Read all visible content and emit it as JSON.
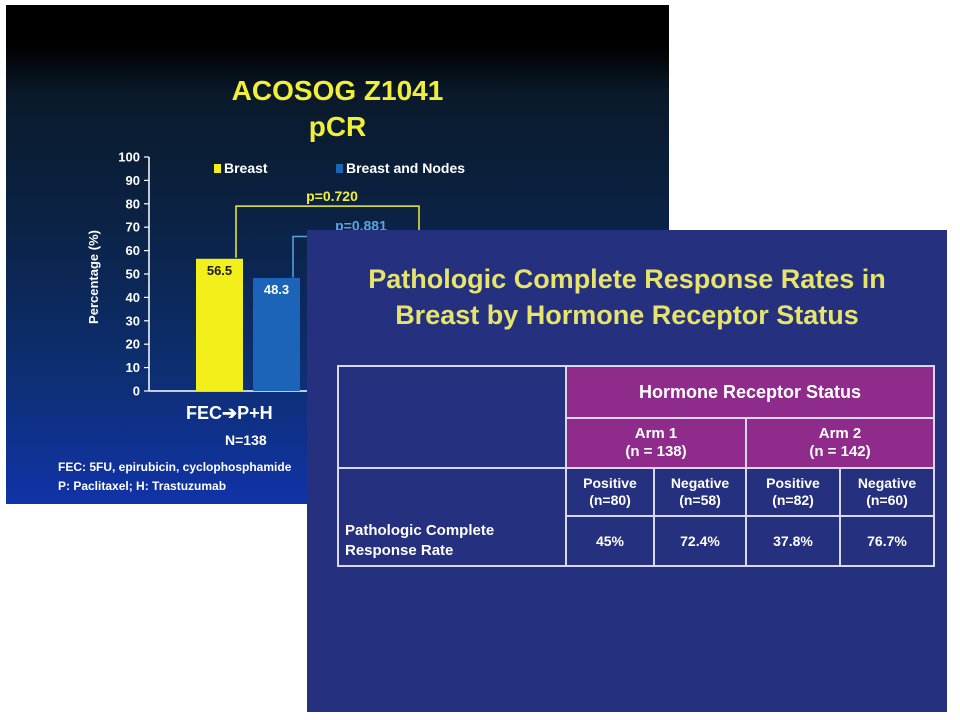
{
  "back_slide": {
    "title_line1": "ACOSOG Z1041",
    "title_line2": "pCR",
    "footnote_line1": "FEC: 5FU, epirubicin, cyclophosphamide",
    "footnote_line2": "P: Paclitaxel; H: Trastuzumab",
    "group_label": "FEC➔P+H",
    "n_label": "N=138"
  },
  "chart_data": {
    "type": "bar",
    "ylabel": "Percentage (%)",
    "ylim": [
      0,
      100
    ],
    "yticks": [
      0,
      10,
      20,
      30,
      40,
      50,
      60,
      70,
      80,
      90,
      100
    ],
    "categories": [
      "FEC➔P+H"
    ],
    "series": [
      {
        "name": "Breast",
        "values": [
          56.5
        ],
        "color": "#f2ef1a"
      },
      {
        "name": "Breast and Nodes",
        "values": [
          48.3
        ],
        "color": "#1b64b8"
      }
    ],
    "legend_position": "top",
    "annotations": [
      {
        "text": "p=0.720",
        "y": 79,
        "color": "#f2ef3a"
      },
      {
        "text": "p=0.881",
        "y": 66,
        "color": "#5ba3e0"
      }
    ],
    "grid": false
  },
  "front_slide": {
    "title_line1": "Pathologic Complete Response Rates in",
    "title_line2": "Breast by Hormone Receptor Status",
    "table": {
      "header": "Hormone Receptor Status",
      "arm1_line1": "Arm 1",
      "arm1_line2": "(n = 138)",
      "arm2_line1": "Arm 2",
      "arm2_line2": "(n = 142)",
      "sub": [
        {
          "line1": "Positive",
          "line2": "(n=80)"
        },
        {
          "line1": "Negative",
          "line2": "(n=58)"
        },
        {
          "line1": "Positive",
          "line2": "(n=82)"
        },
        {
          "line1": "Negative",
          "line2": "(n=60)"
        }
      ],
      "row_label_line1": "Pathologic Complete",
      "row_label_line2": "Response Rate",
      "values": [
        "45%",
        "72.4%",
        "37.8%",
        "76.7%"
      ]
    }
  }
}
